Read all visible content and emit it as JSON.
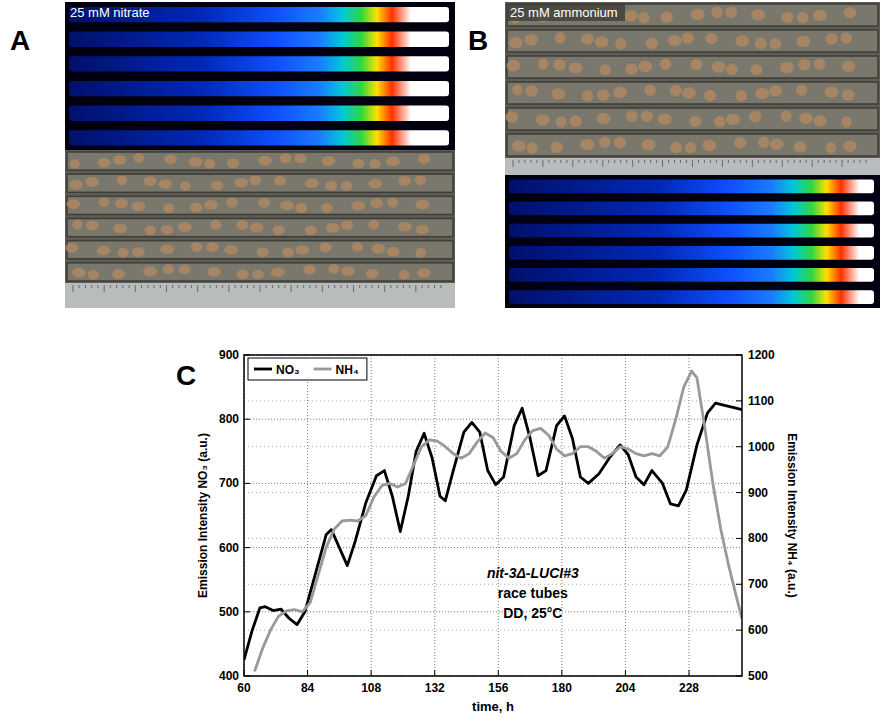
{
  "figure": {
    "panels": [
      {
        "letter": "A",
        "label": "25 mM nitrate"
      },
      {
        "letter": "B",
        "label": "25 mM ammonium"
      },
      {
        "letter": "C"
      }
    ]
  },
  "chart_data": {
    "type": "line",
    "xlabel": "time, h",
    "ylabel": "Emission Intensity NO₃ (a.u.)",
    "y2label": "Emission Intensity NH₄ (a.u.)",
    "annotations": [
      "nit-3Δ-LUCI#3",
      "race tubes",
      "DD, 25°C"
    ],
    "xlim": [
      60,
      248
    ],
    "xticks": [
      60,
      84,
      108,
      132,
      156,
      180,
      204,
      228
    ],
    "ylim": [
      400,
      900
    ],
    "yticks": [
      400,
      500,
      600,
      700,
      800,
      900
    ],
    "y2lim": [
      500,
      1200
    ],
    "y2ticks": [
      500,
      600,
      700,
      800,
      900,
      1000,
      1100,
      1200
    ],
    "grid": true,
    "legend": "upper left",
    "series": [
      {
        "name": "NO₃",
        "color": "#000000",
        "axis": "y",
        "x": [
          60,
          63,
          66,
          68,
          71,
          74,
          77,
          80,
          83,
          87,
          91,
          93,
          96,
          99,
          102,
          106,
          110,
          113,
          116,
          119,
          122,
          125,
          128,
          131,
          134,
          136,
          139,
          143,
          146,
          149,
          152,
          155,
          158,
          162,
          165,
          168,
          171,
          174,
          178,
          181,
          184,
          187,
          190,
          194,
          198,
          202,
          205,
          208,
          211,
          214,
          218,
          221,
          224,
          227,
          231,
          235,
          238,
          241,
          245,
          248
        ],
        "values": [
          425,
          470,
          506,
          508,
          502,
          504,
          490,
          480,
          500,
          560,
          620,
          628,
          600,
          572,
          610,
          670,
          712,
          720,
          680,
          625,
          680,
          750,
          778,
          740,
          680,
          673,
          720,
          780,
          795,
          780,
          720,
          698,
          710,
          790,
          817,
          770,
          712,
          720,
          790,
          805,
          770,
          710,
          700,
          715,
          740,
          760,
          745,
          710,
          698,
          720,
          700,
          668,
          665,
          690,
          760,
          810,
          825,
          822,
          818,
          815
        ]
      },
      {
        "name": "NH₄",
        "color": "#999999",
        "axis": "y2",
        "x": [
          64,
          67,
          70,
          73,
          76,
          79,
          82,
          85,
          88,
          91,
          94,
          97,
          100,
          103,
          106,
          109,
          112,
          115,
          118,
          121,
          124,
          127,
          130,
          133,
          136,
          139,
          142,
          145,
          148,
          151,
          154,
          157,
          160,
          163,
          166,
          169,
          172,
          175,
          178,
          181,
          184,
          187,
          190,
          193,
          196,
          199,
          202,
          205,
          208,
          211,
          214,
          217,
          220,
          223,
          226,
          229,
          231,
          234,
          237,
          240,
          243,
          246,
          248
        ],
        "values": [
          510,
          560,
          600,
          630,
          642,
          645,
          640,
          660,
          720,
          780,
          820,
          838,
          840,
          838,
          850,
          890,
          915,
          920,
          912,
          920,
          960,
          1000,
          1015,
          1012,
          1000,
          985,
          975,
          985,
          1010,
          1030,
          1020,
          990,
          975,
          985,
          1015,
          1035,
          1040,
          1025,
          995,
          980,
          985,
          1000,
          1000,
          990,
          975,
          985,
          1000,
          995,
          985,
          980,
          985,
          980,
          1000,
          1060,
          1130,
          1165,
          1150,
          1040,
          920,
          820,
          740,
          670,
          625
        ]
      }
    ]
  }
}
